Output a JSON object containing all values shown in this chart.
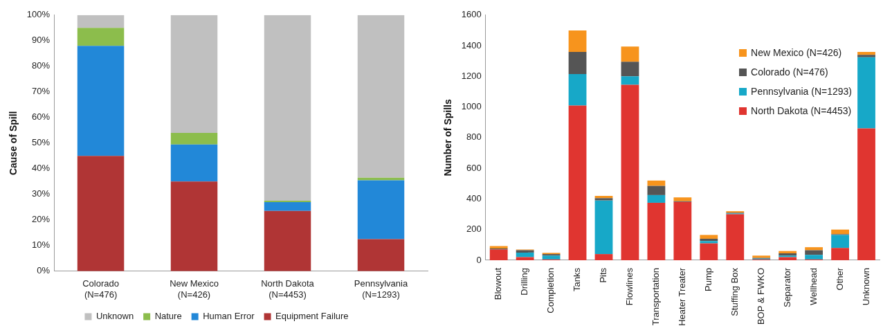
{
  "chart_data": [
    {
      "type": "bar",
      "stacked": true,
      "ylabel": "Cause of Spill",
      "categories": [
        "Colorado (N=476)",
        "New Mexico (N=426)",
        "North Dakota (N=4453)",
        "Pennsylvania (N=1293)"
      ],
      "ylim": [
        0,
        100
      ],
      "yticks": [
        {
          "value": 0,
          "label": "0%"
        },
        {
          "value": 10,
          "label": "10%"
        },
        {
          "value": 20,
          "label": "20%"
        },
        {
          "value": 30,
          "label": "30%"
        },
        {
          "value": 40,
          "label": "40%"
        },
        {
          "value": 50,
          "label": "50%"
        },
        {
          "value": 60,
          "label": "60%"
        },
        {
          "value": 70,
          "label": "70%"
        },
        {
          "value": 80,
          "label": "80%"
        },
        {
          "value": 90,
          "label": "90%"
        },
        {
          "value": 100,
          "label": "100%"
        }
      ],
      "grid": false,
      "legend": "bottom",
      "series": [
        {
          "name": "Equipment Failure",
          "color": "#b03535",
          "values": [
            45,
            35,
            23.5,
            12.5
          ]
        },
        {
          "name": "Human Error",
          "color": "#2288d8",
          "values": [
            43,
            14.5,
            3.5,
            23
          ]
        },
        {
          "name": "Nature",
          "color": "#8cbd4c",
          "values": [
            7,
            4.5,
            0.5,
            1
          ]
        },
        {
          "name": "Unknown",
          "color": "#c0c0c0",
          "values": [
            5,
            46,
            72.5,
            63.5
          ]
        }
      ]
    },
    {
      "type": "bar",
      "stacked": true,
      "ylabel": "Number of Spills",
      "categories": [
        "Blowout",
        "Drilling",
        "Completion",
        "Tanks",
        "Pits",
        "Flowlines",
        "Transportation",
        "Heater Treater",
        "Pump",
        "Stuffing Box",
        "BOP & FWKO",
        "Separator",
        "Wellhead",
        "Other",
        "Unknown"
      ],
      "ylim": [
        0,
        1600
      ],
      "yticks": [
        0,
        200,
        400,
        600,
        800,
        1000,
        1200,
        1400,
        1600
      ],
      "grid": false,
      "legend": "top right",
      "series": [
        {
          "name": "North Dakota (N=4453)",
          "color": "#e03530",
          "values": [
            70,
            20,
            5,
            1010,
            40,
            1145,
            375,
            380,
            110,
            300,
            5,
            20,
            5,
            80,
            860
          ]
        },
        {
          "name": "Pennsylvania (N=1293)",
          "color": "#17a8c8",
          "values": [
            null,
            30,
            25,
            205,
            350,
            55,
            50,
            0,
            15,
            5,
            5,
            10,
            30,
            85,
            465
          ]
        },
        {
          "name": "Colorado (N=476)",
          "color": "#555555",
          "values": [
            7,
            15,
            10,
            145,
            15,
            95,
            60,
            5,
            15,
            5,
            5,
            15,
            30,
            5,
            15
          ]
        },
        {
          "name": "New Mexico (N=426)",
          "color": "#f7941d",
          "values": [
            15,
            5,
            8,
            140,
            15,
            100,
            35,
            25,
            25,
            10,
            15,
            15,
            20,
            30,
            20
          ]
        }
      ]
    }
  ]
}
